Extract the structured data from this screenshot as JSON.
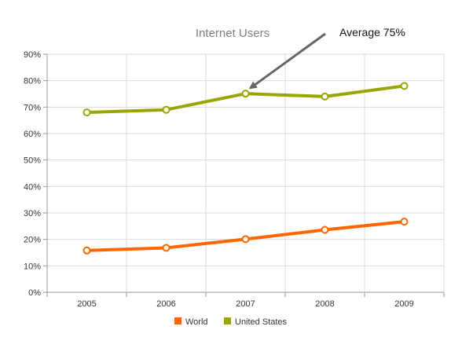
{
  "chart_data": {
    "type": "line",
    "title": "Internet Users",
    "categories": [
      "2005",
      "2006",
      "2007",
      "2008",
      "2009"
    ],
    "ylim": [
      0,
      90
    ],
    "yticks": [
      "0%",
      "10%",
      "20%",
      "30%",
      "40%",
      "50%",
      "60%",
      "70%",
      "80%",
      "90%"
    ],
    "grid": true,
    "legend_position": "bottom",
    "series": [
      {
        "name": "World",
        "color": "#ff6600",
        "values": [
          15.8,
          16.8,
          20.1,
          23.6,
          26.7
        ]
      },
      {
        "name": "United States",
        "color": "#99a600",
        "values": [
          68,
          69,
          75.1,
          74,
          78
        ]
      }
    ],
    "annotation": {
      "text": "Average  75%",
      "target_category": "2007",
      "target_value": 75.1
    }
  }
}
